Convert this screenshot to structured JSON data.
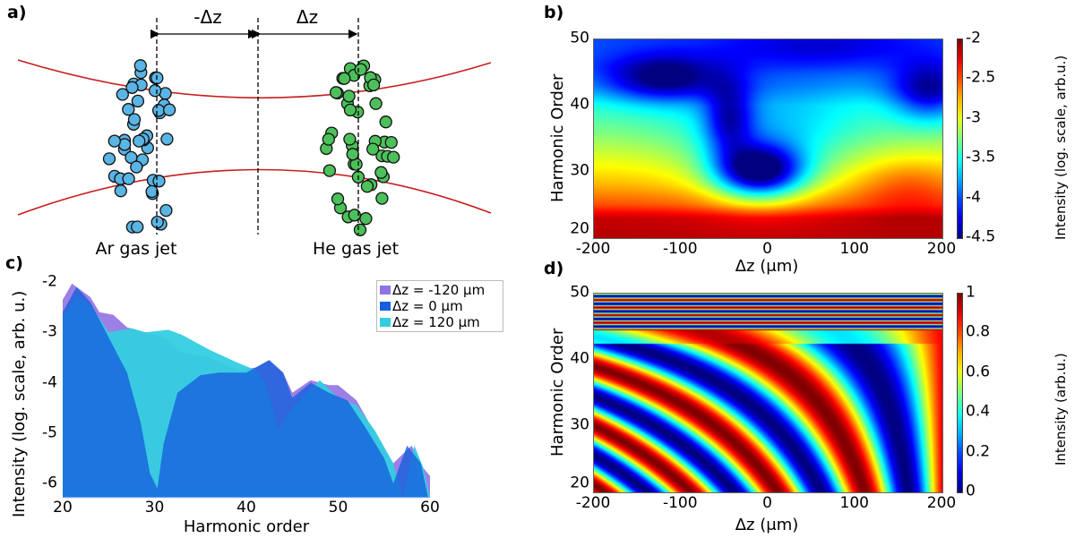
{
  "panels": {
    "a": {
      "label": "a)",
      "minus_dz": "-Δz",
      "dz": "Δz",
      "ar_label": "Ar gas jet",
      "he_label": "He gas jet",
      "ar_color": "#5ab4e4",
      "he_color": "#4cc05a",
      "beam_color": "#c81e1e"
    },
    "b": {
      "label": "b)"
    },
    "c": {
      "label": "c)"
    },
    "d": {
      "label": "d)"
    }
  },
  "chart_data": [
    {
      "id": "b",
      "type": "heatmap",
      "xlabel": "Δz (μm)",
      "ylabel": "Harmonic Order",
      "colorbar_label": "Intensity (log. scale, arb.u.)",
      "xlim": [
        -200,
        200
      ],
      "ylim": [
        20,
        50
      ],
      "clim": [
        -4.5,
        -2
      ],
      "xticks": [
        "-200",
        "-100",
        "0",
        "100",
        "200"
      ],
      "yticks": [
        "20",
        "30",
        "40",
        "50"
      ],
      "cticks": [
        "-2",
        "-2.5",
        "-3",
        "-3.5",
        "-4",
        "-4.5"
      ],
      "colormap": "jet"
    },
    {
      "id": "c",
      "type": "area",
      "xlabel": "Harmonic order",
      "ylabel": "Intensity (log. scale, arb. u.)",
      "xlim": [
        20,
        60
      ],
      "ylim": [
        -6.28,
        -1.95
      ],
      "xticks": [
        "20",
        "30",
        "40",
        "50",
        "60"
      ],
      "yticks": [
        "-2",
        "-3",
        "-4",
        "-5",
        "-6"
      ],
      "legend": "top-right",
      "series": [
        {
          "name": "Δz = -120 μm",
          "color": "#9272e2",
          "points": [
            [
              20,
              -2.35
            ],
            [
              21,
              -2.03
            ],
            [
              23,
              -2.3
            ],
            [
              24,
              -2.6
            ],
            [
              25.5,
              -2.65
            ],
            [
              27,
              -2.9
            ],
            [
              29,
              -3.0
            ],
            [
              31,
              -3.1
            ],
            [
              33,
              -3.4
            ],
            [
              36,
              -3.5
            ],
            [
              39,
              -3.75
            ],
            [
              41,
              -3.7
            ],
            [
              42.5,
              -3.55
            ],
            [
              44,
              -3.8
            ],
            [
              45,
              -4.2
            ],
            [
              47,
              -3.95
            ],
            [
              49,
              -4.05
            ],
            [
              50,
              -4.05
            ],
            [
              52,
              -4.35
            ],
            [
              54,
              -5.0
            ],
            [
              56,
              -5.6
            ],
            [
              58,
              -5.25
            ],
            [
              59.3,
              -5.7
            ],
            [
              60,
              -5.85
            ]
          ]
        },
        {
          "name": "Δz = 120 μm",
          "color": "#34cde2",
          "points": [
            [
              20,
              -2.7
            ],
            [
              21.5,
              -2.3
            ],
            [
              23,
              -2.45
            ],
            [
              25,
              -3.0
            ],
            [
              27.5,
              -2.92
            ],
            [
              29,
              -3.0
            ],
            [
              31.5,
              -2.95
            ],
            [
              33,
              -3.05
            ],
            [
              36,
              -3.35
            ],
            [
              39,
              -3.6
            ],
            [
              41,
              -3.75
            ],
            [
              42,
              -4.0
            ],
            [
              43.5,
              -4.95
            ],
            [
              45,
              -4.5
            ],
            [
              48,
              -3.95
            ],
            [
              50,
              -4.3
            ],
            [
              52,
              -4.45
            ],
            [
              54,
              -4.95
            ],
            [
              56,
              -5.6
            ],
            [
              57,
              -6.28
            ],
            [
              57.5,
              -5.9
            ],
            [
              58.3,
              -5.25
            ],
            [
              59.3,
              -5.7
            ],
            [
              60,
              -6.28
            ]
          ]
        },
        {
          "name": "Δz = 0 μm",
          "color": "#1560dc",
          "points": [
            [
              20,
              -2.6
            ],
            [
              21.5,
              -2.1
            ],
            [
              23,
              -2.4
            ],
            [
              25,
              -3.1
            ],
            [
              27,
              -3.8
            ],
            [
              28.5,
              -4.8
            ],
            [
              29.5,
              -5.8
            ],
            [
              30.3,
              -6.1
            ],
            [
              31,
              -5.2
            ],
            [
              32.5,
              -4.2
            ],
            [
              35,
              -3.85
            ],
            [
              37,
              -3.8
            ],
            [
              40,
              -3.8
            ],
            [
              42.5,
              -3.55
            ],
            [
              44,
              -3.8
            ],
            [
              45,
              -4.3
            ],
            [
              47,
              -4.0
            ],
            [
              49,
              -4.2
            ],
            [
              51,
              -4.35
            ],
            [
              53,
              -4.9
            ],
            [
              55,
              -5.5
            ],
            [
              56,
              -6.0
            ],
            [
              57.5,
              -5.25
            ],
            [
              59,
              -5.6
            ],
            [
              59.8,
              -6.28
            ]
          ]
        }
      ]
    },
    {
      "id": "d",
      "type": "heatmap",
      "xlabel": "Δz (μm)",
      "ylabel": "Harmonic Order",
      "colorbar_label": "Intensity (arb.u.)",
      "xlim": [
        -200,
        200
      ],
      "ylim": [
        20,
        50
      ],
      "clim": [
        0,
        1
      ],
      "xticks": [
        "-200",
        "-100",
        "0",
        "100",
        "200"
      ],
      "yticks": [
        "20",
        "30",
        "40",
        "50"
      ],
      "cticks": [
        "0",
        "0.2",
        "0.4",
        "0.6",
        "0.8",
        "1"
      ],
      "colormap": "jet"
    }
  ]
}
